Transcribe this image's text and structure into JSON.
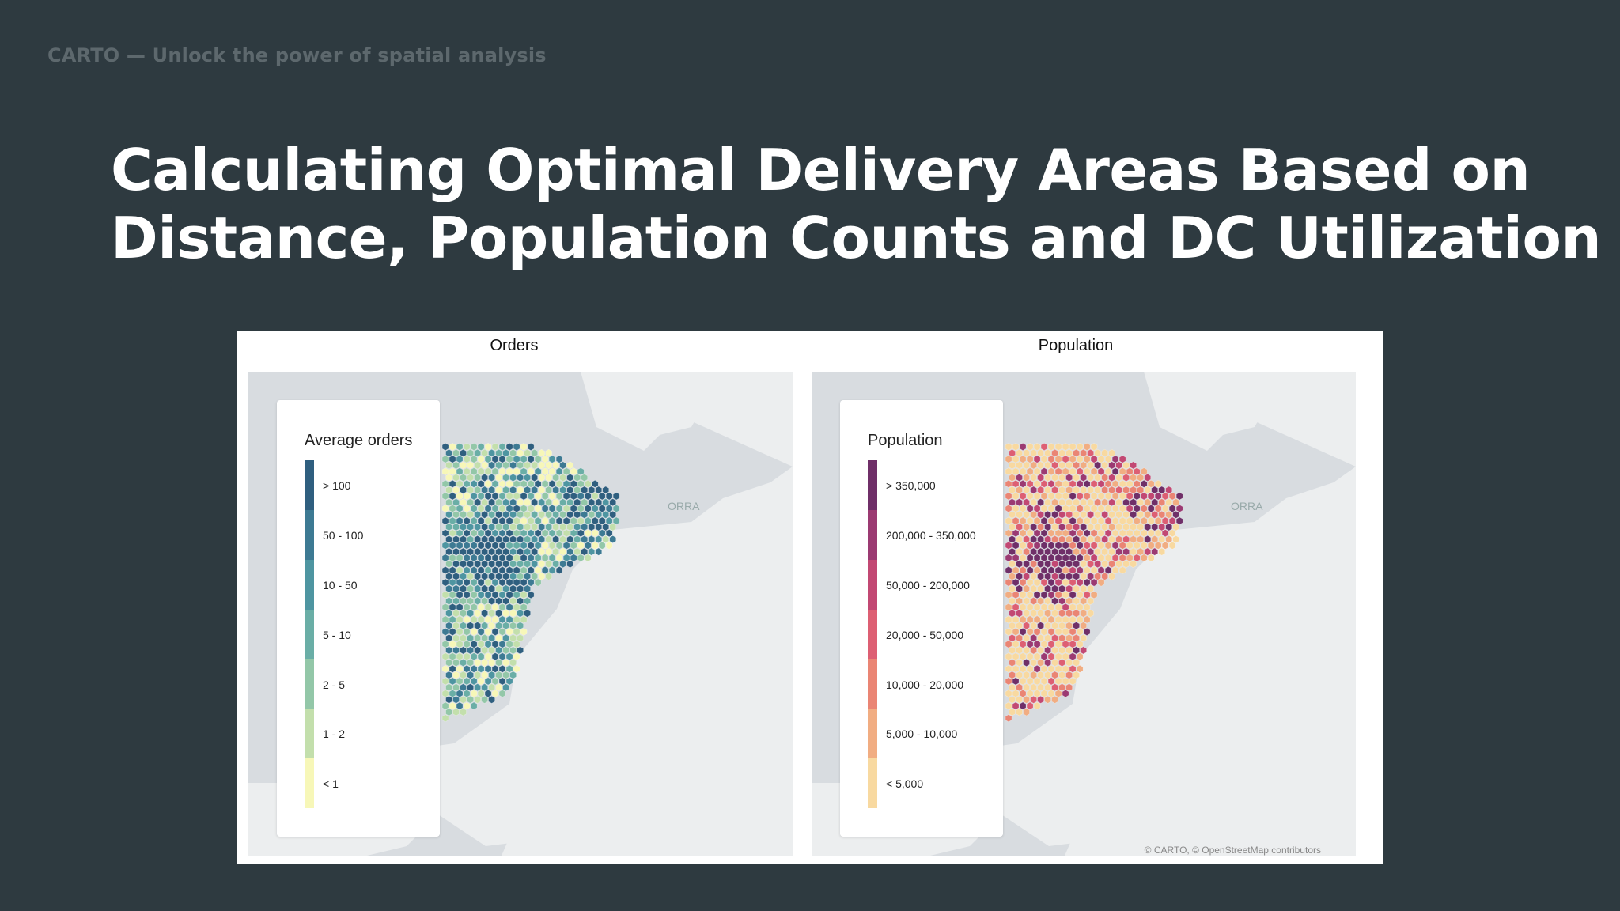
{
  "header": {
    "brand": "CARTO — Unlock the power of spatial analysis",
    "title_line1": "Calculating Optimal Delivery Areas Based on",
    "title_line2": "Distance, Population Counts and DC Utilization"
  },
  "colors": {
    "background": "#2e3a40",
    "map_land": "#eceeef",
    "map_sea": "#d8dce0"
  },
  "maps": [
    {
      "title": "Orders",
      "legend": {
        "title": "Average orders",
        "items": [
          {
            "label": "> 100",
            "color": "#2f5f7f"
          },
          {
            "label": "50 - 100",
            "color": "#3d7a93"
          },
          {
            "label": "10 - 50",
            "color": "#4e95a1"
          },
          {
            "label": "5 - 10",
            "color": "#6aaea6"
          },
          {
            "label": "2 - 5",
            "color": "#93c7a8"
          },
          {
            "label": "1 - 2",
            "color": "#c3dfac"
          },
          {
            "label": "< 1",
            "color": "#f7f7b8"
          }
        ]
      },
      "place_label": "ORRA"
    },
    {
      "title": "Population",
      "legend": {
        "title": "Population",
        "items": [
          {
            "label": "> 350,000",
            "color": "#6f2f68"
          },
          {
            "label": "200,000 - 350,000",
            "color": "#9b3a72"
          },
          {
            "label": "50,000 - 200,000",
            "color": "#c24873"
          },
          {
            "label": "20,000 - 50,000",
            "color": "#dd5f73"
          },
          {
            "label": "10,000 - 20,000",
            "color": "#ea8574"
          },
          {
            "label": "5,000 - 10,000",
            "color": "#f1ad82"
          },
          {
            "label": "< 5,000",
            "color": "#f8d9a0"
          }
        ]
      },
      "place_label": "ORRA",
      "attribution": "© CARTO, © OpenStreetMap contributors"
    }
  ]
}
